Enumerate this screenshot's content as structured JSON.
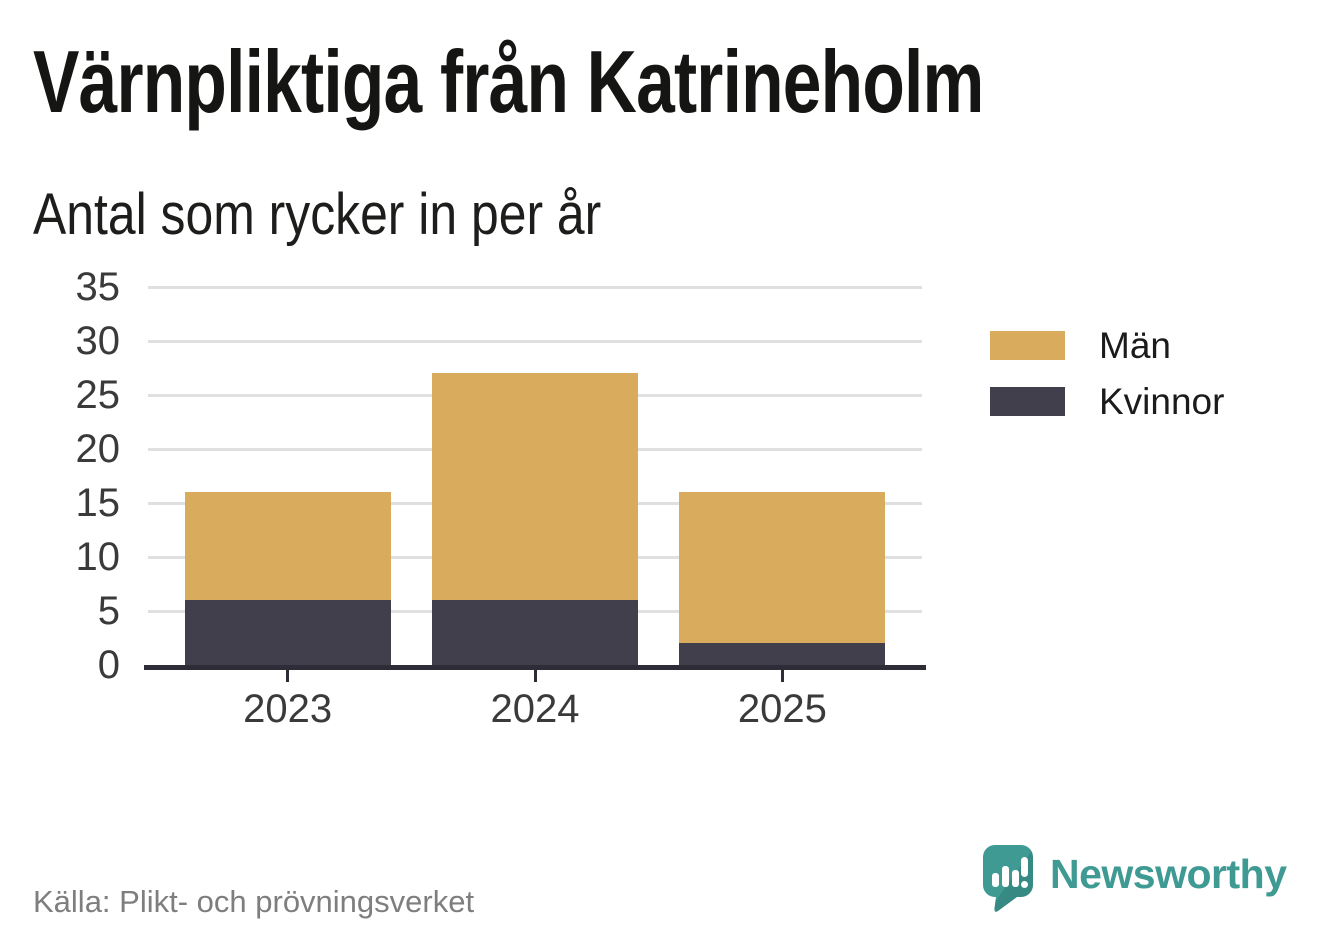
{
  "title": "Värnpliktiga från Katrineholm",
  "subtitle": "Antal som rycker in per år",
  "source": "Källa: Plikt- och prövningsverket",
  "branding": {
    "name": "Newsworthy",
    "color": "#3E9A92",
    "logo_icon": "bar-chart-exclamation-speech-bubble"
  },
  "chart_data": {
    "type": "bar",
    "stacked": true,
    "title": "Värnpliktiga från Katrineholm",
    "subtitle": "Antal som rycker in per år",
    "categories": [
      "2023",
      "2024",
      "2025"
    ],
    "series": [
      {
        "name": "Män",
        "color": "#D9AB5C",
        "values": [
          10,
          21,
          14
        ]
      },
      {
        "name": "Kvinnor",
        "color": "#423F4D",
        "values": [
          6,
          6,
          2
        ]
      }
    ],
    "stack_bottom_to_top": [
      "Kvinnor",
      "Män"
    ],
    "totals": [
      16,
      27,
      16
    ],
    "ylim": [
      0,
      35
    ],
    "yticks": [
      0,
      5,
      10,
      15,
      20,
      25,
      30,
      35
    ],
    "grid": "horizontal",
    "legend_position": "right",
    "style": {
      "gridline_color": "#E0E0E0",
      "axis_color": "#2E2C37",
      "tick_label_color": "#3A3A3A"
    }
  }
}
